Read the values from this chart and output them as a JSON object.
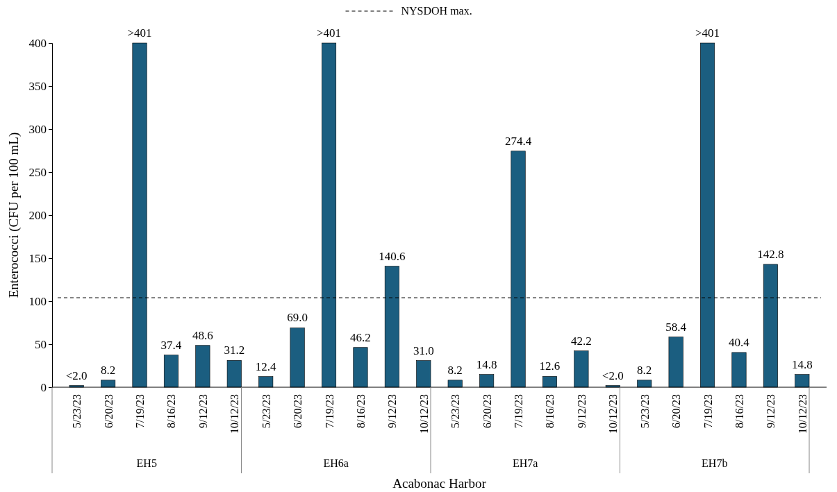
{
  "chart_data": {
    "type": "bar",
    "ylabel": "Enterococci (CFU per 100 mL)",
    "xlabel": "Acabonac Harbor",
    "categories": [
      "5/23/23",
      "6/20/23",
      "7/19/23",
      "8/16/23",
      "9/12/23",
      "10/12/23",
      "5/23/23",
      "6/20/23",
      "7/19/23",
      "8/16/23",
      "9/12/23",
      "10/12/23",
      "5/23/23",
      "6/20/23",
      "7/19/23",
      "8/16/23",
      "9/12/23",
      "10/12/23",
      "5/23/23",
      "6/20/23",
      "7/19/23",
      "8/16/23",
      "9/12/23",
      "10/12/23"
    ],
    "values": [
      2,
      8.2,
      400,
      37.4,
      48.6,
      31.2,
      12.4,
      69.0,
      400,
      46.2,
      140.6,
      31.0,
      8.2,
      14.8,
      274.4,
      12.6,
      42.2,
      2,
      8.2,
      58.4,
      400,
      40.4,
      142.8,
      14.8
    ],
    "value_labels": [
      "<2.0",
      "8.2",
      ">401",
      "37.4",
      "48.6",
      "31.2",
      "12.4",
      "69.0",
      ">401",
      "46.2",
      "140.6",
      "31.0",
      "8.2",
      "14.8",
      "274.4",
      "12.6",
      "42.2",
      "<2.0",
      "8.2",
      "58.4",
      ">401",
      "40.4",
      "142.8",
      "14.8"
    ],
    "color": "#1b5e80",
    "ylim": [
      0,
      400
    ],
    "yticks": [
      0,
      50,
      100,
      150,
      200,
      250,
      300,
      350,
      400
    ],
    "grid": false,
    "legend": "top",
    "ref_lines": [
      {
        "axis": "y",
        "value": 104,
        "label": "NYSDOH max.",
        "line_style": "dashed",
        "color": "#000000"
      }
    ],
    "annotations": [
      "EH5",
      "EH6a",
      "EH7a",
      "EH7b"
    ]
  }
}
